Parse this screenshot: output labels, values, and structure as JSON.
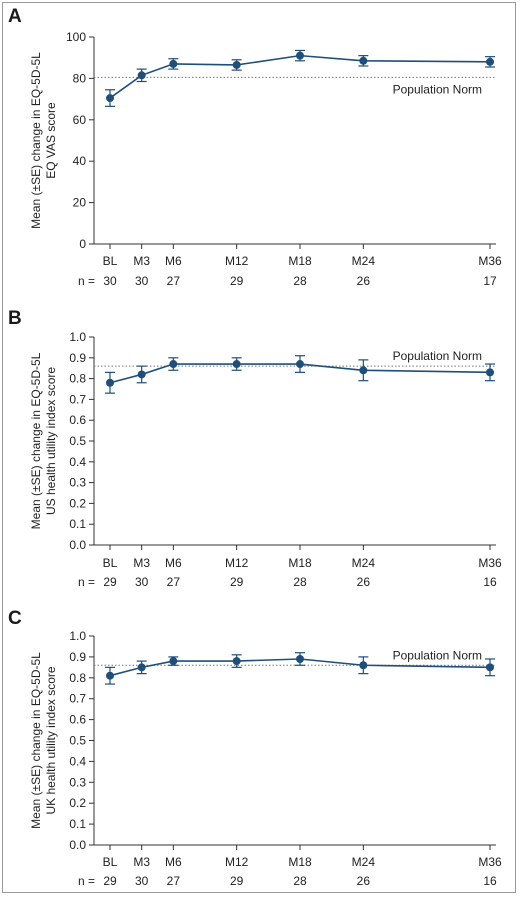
{
  "colors": {
    "series": "#1f4e79",
    "axis": "#333333",
    "norm": "#777777"
  },
  "chart_data": [
    {
      "type": "line",
      "panel_label": "A",
      "ylabel": [
        "Mean (±SE) change in EQ-5D-5L",
        "EQ VAS score"
      ],
      "categories": [
        "BL",
        "M3",
        "M6",
        "M12",
        "M18",
        "M24",
        "M36"
      ],
      "x_months": [
        0,
        3,
        6,
        12,
        18,
        24,
        36
      ],
      "n_prefix": "n = ",
      "n": [
        "30",
        "30",
        "27",
        "29",
        "28",
        "26",
        "17"
      ],
      "ylim": [
        0,
        100
      ],
      "yticks": [
        0,
        20,
        40,
        60,
        80,
        100
      ],
      "ytick_labels": [
        "0",
        "20",
        "40",
        "60",
        "80",
        "100"
      ],
      "values": [
        70.5,
        81.5,
        87,
        86.5,
        91,
        88.5,
        88
      ],
      "se": [
        4,
        3,
        2.5,
        2.5,
        2.5,
        2.5,
        2.5
      ],
      "population_norm": {
        "label": "Population Norm",
        "value": 80.5,
        "label_position": "below-right"
      }
    },
    {
      "type": "line",
      "panel_label": "B",
      "ylabel": [
        "Mean (±SE) change in EQ-5D-5L",
        "US health utility index score"
      ],
      "categories": [
        "BL",
        "M3",
        "M6",
        "M12",
        "M18",
        "M24",
        "M36"
      ],
      "x_months": [
        0,
        3,
        6,
        12,
        18,
        24,
        36
      ],
      "n_prefix": "n = ",
      "n": [
        "29",
        "30",
        "27",
        "29",
        "28",
        "26",
        "16"
      ],
      "ylim": [
        0,
        1.0
      ],
      "yticks": [
        0,
        0.1,
        0.2,
        0.3,
        0.4,
        0.5,
        0.6,
        0.7,
        0.8,
        0.9,
        1.0
      ],
      "ytick_labels": [
        "0.0",
        "0.1",
        "0.2",
        "0.3",
        "0.4",
        "0.5",
        "0.6",
        "0.7",
        "0.8",
        "0.9",
        "1.0"
      ],
      "values": [
        0.78,
        0.82,
        0.87,
        0.87,
        0.87,
        0.84,
        0.83
      ],
      "se": [
        0.05,
        0.04,
        0.03,
        0.03,
        0.04,
        0.05,
        0.04
      ],
      "population_norm": {
        "label": "Population Norm",
        "value": 0.86,
        "label_position": "above-right"
      }
    },
    {
      "type": "line",
      "panel_label": "C",
      "ylabel": [
        "Mean (±SE) change in EQ-5D-5L",
        "UK health utility index score"
      ],
      "categories": [
        "BL",
        "M3",
        "M6",
        "M12",
        "M18",
        "M24",
        "M36"
      ],
      "x_months": [
        0,
        3,
        6,
        12,
        18,
        24,
        36
      ],
      "n_prefix": "n = ",
      "n": [
        "29",
        "30",
        "27",
        "29",
        "28",
        "26",
        "16"
      ],
      "ylim": [
        0,
        1.0
      ],
      "yticks": [
        0,
        0.1,
        0.2,
        0.3,
        0.4,
        0.5,
        0.6,
        0.7,
        0.8,
        0.9,
        1.0
      ],
      "ytick_labels": [
        "0.0",
        "0.1",
        "0.2",
        "0.3",
        "0.4",
        "0.5",
        "0.6",
        "0.7",
        "0.8",
        "0.9",
        "1.0"
      ],
      "values": [
        0.81,
        0.85,
        0.88,
        0.88,
        0.89,
        0.86,
        0.85
      ],
      "se": [
        0.04,
        0.03,
        0.02,
        0.03,
        0.03,
        0.04,
        0.04
      ],
      "population_norm": {
        "label": "Population Norm",
        "value": 0.86,
        "label_position": "above-right"
      }
    }
  ]
}
